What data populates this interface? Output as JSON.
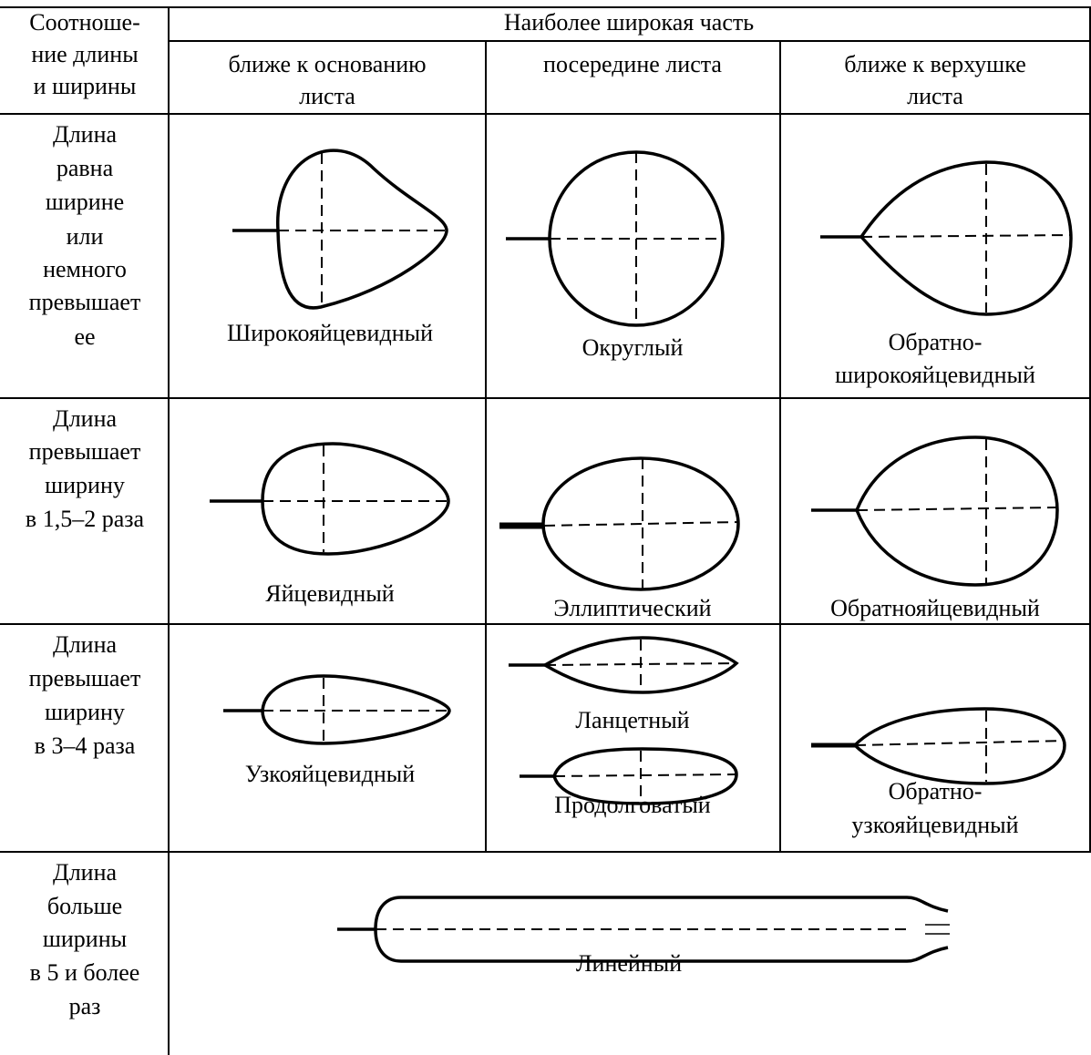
{
  "table": {
    "header": {
      "ratio": [
        "Соотноше-",
        "ние длины",
        "и ширины"
      ],
      "widest_part": "Наиболее широкая часть",
      "columns": [
        [
          "ближе к основанию",
          "листа"
        ],
        [
          "посередине листа"
        ],
        [
          "ближе к верхушке",
          "листа"
        ]
      ]
    },
    "rows": [
      {
        "label": [
          "Длина",
          "равна",
          "ширине",
          "или",
          "немного",
          "превышает",
          "ее"
        ],
        "cells": [
          [
            [
              "Широкояйцевидный"
            ]
          ],
          [
            [
              "Округлый"
            ]
          ],
          [
            [
              "Обратно-",
              "широкояйцевидный"
            ]
          ]
        ]
      },
      {
        "label": [
          "Длина",
          "превышает",
          "ширину",
          "в 1,5–2 раза"
        ],
        "cells": [
          [
            [
              "Яйцевидный"
            ]
          ],
          [
            [
              "Эллиптический"
            ]
          ],
          [
            [
              "Обратнояйцевидный"
            ]
          ]
        ]
      },
      {
        "label": [
          "Длина",
          "превышает",
          "ширину",
          "в 3–4 раза"
        ],
        "cells": [
          [
            [
              "Узкояйцевидный"
            ]
          ],
          [
            [
              "Ланцетный"
            ],
            [
              "Продолговатый"
            ]
          ],
          [
            [
              "Обратно-",
              "узкояйцевидный"
            ]
          ]
        ]
      },
      {
        "label": [
          "Длина",
          "больше",
          "ширины",
          "в 5 и более",
          "раз"
        ],
        "cells": [
          [
            [
              "Линейный"
            ]
          ]
        ]
      }
    ]
  }
}
